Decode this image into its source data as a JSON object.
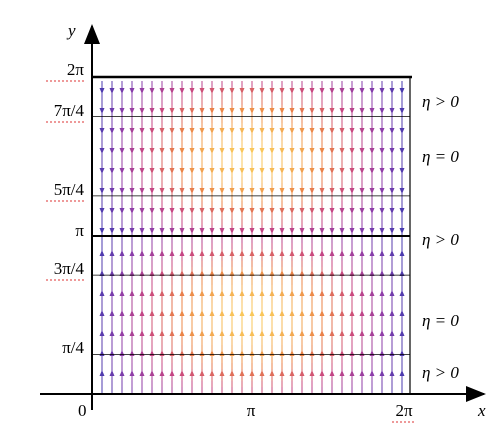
{
  "axes": {
    "y_label": "y",
    "x_label": "x",
    "origin": "0",
    "x_ticks": [
      "π",
      "2π"
    ],
    "y_ticks": [
      "2π",
      "7π/4",
      "5π/4",
      "π",
      "3π/4",
      "π/4"
    ]
  },
  "regions": [
    "η > 0",
    "η = 0",
    "η > 0",
    "η = 0",
    "η > 0"
  ]
}
